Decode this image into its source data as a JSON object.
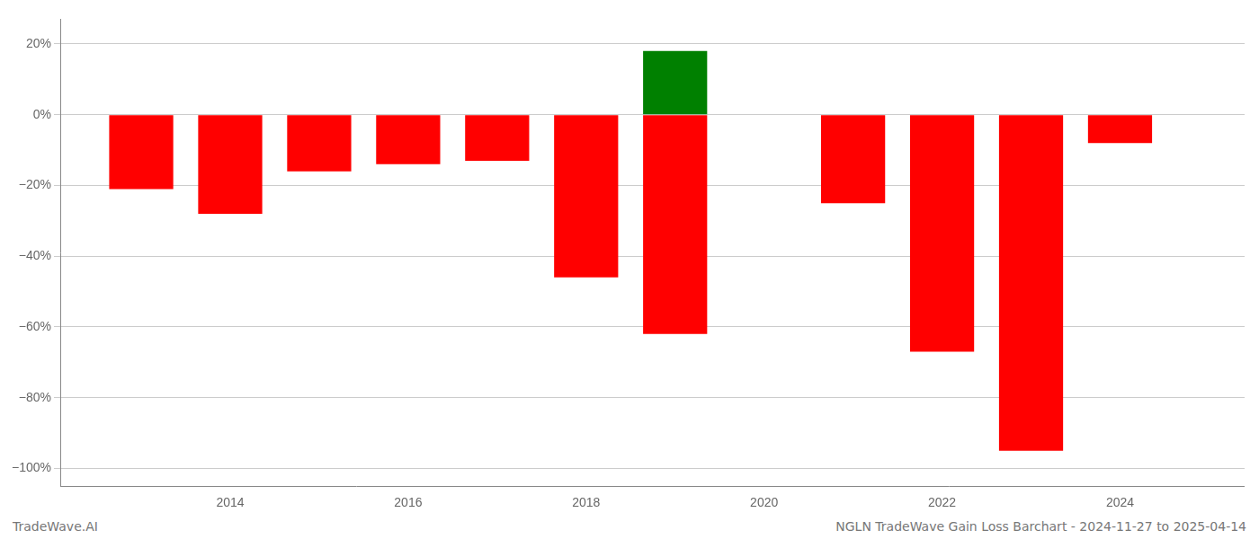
{
  "chart_data": {
    "type": "bar",
    "title": "NGLN TradeWave Gain Loss Barchart - 2024-11-27 to 2025-04-14",
    "annotations": [
      "TradeWave.AI"
    ],
    "x": [
      2013,
      2014,
      2015,
      2016,
      2017,
      2018,
      2019,
      2021,
      2022,
      2023,
      2024
    ],
    "series": [
      {
        "color": "#ff0000",
        "values": [
          -0.21,
          -0.28,
          -0.16,
          -0.14,
          -0.13,
          -0.46,
          -0.62,
          -0.25,
          -0.67,
          -0.95,
          -0.08
        ]
      },
      {
        "color": "#008000",
        "values": [
          null,
          null,
          null,
          null,
          null,
          null,
          0.18,
          null,
          null,
          null,
          null
        ]
      }
    ],
    "xlim": [
      2012.1,
      2025.4
    ],
    "xticks": [
      2014,
      2016,
      2018,
      2020,
      2022,
      2024
    ],
    "ylim": [
      -1.05,
      0.27
    ],
    "yticks": [
      {
        "value": 0.2,
        "label": "20%"
      },
      {
        "value": 0.0,
        "label": "0%"
      },
      {
        "value": -0.2,
        "label": "−20%"
      },
      {
        "value": -0.4,
        "label": "−40%"
      },
      {
        "value": -0.6,
        "label": "−60%"
      },
      {
        "value": -0.8,
        "label": "−80%"
      },
      {
        "value": -1.0,
        "label": "−100%"
      }
    ],
    "grid": true
  }
}
